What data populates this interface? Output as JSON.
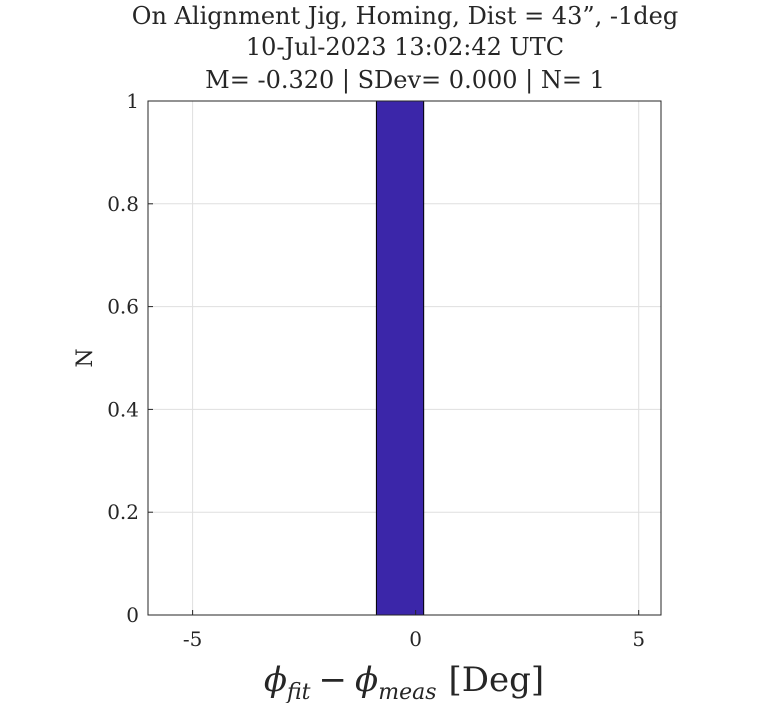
{
  "chart_data": {
    "type": "bar",
    "title_lines": [
      "On Alignment Jig, Homing, Dist = 43”, -1deg",
      "10-Jul-2023 13:02:42 UTC",
      "M= -0.320 | SDev= 0.000 | N= 1"
    ],
    "xlabel": {
      "phi": "ϕ",
      "fit": "fit",
      "minus": "−",
      "meas": "meas",
      "unit": "[Deg]"
    },
    "ylabel": "N",
    "xlim": [
      -6,
      5.5
    ],
    "ylim": [
      0,
      1
    ],
    "xticks": [
      -5,
      0,
      5
    ],
    "xtick_labels": [
      "-5",
      "0",
      "5"
    ],
    "yticks": [
      0,
      0.2,
      0.4,
      0.6,
      0.8,
      1
    ],
    "ytick_labels": [
      "0",
      "0.2",
      "0.4",
      "0.6",
      "0.8",
      "1"
    ],
    "grid": true,
    "bins": [
      {
        "x_start": -0.88,
        "x_end": 0.18,
        "count": 1
      }
    ],
    "bar_color": "#3b26a9"
  }
}
